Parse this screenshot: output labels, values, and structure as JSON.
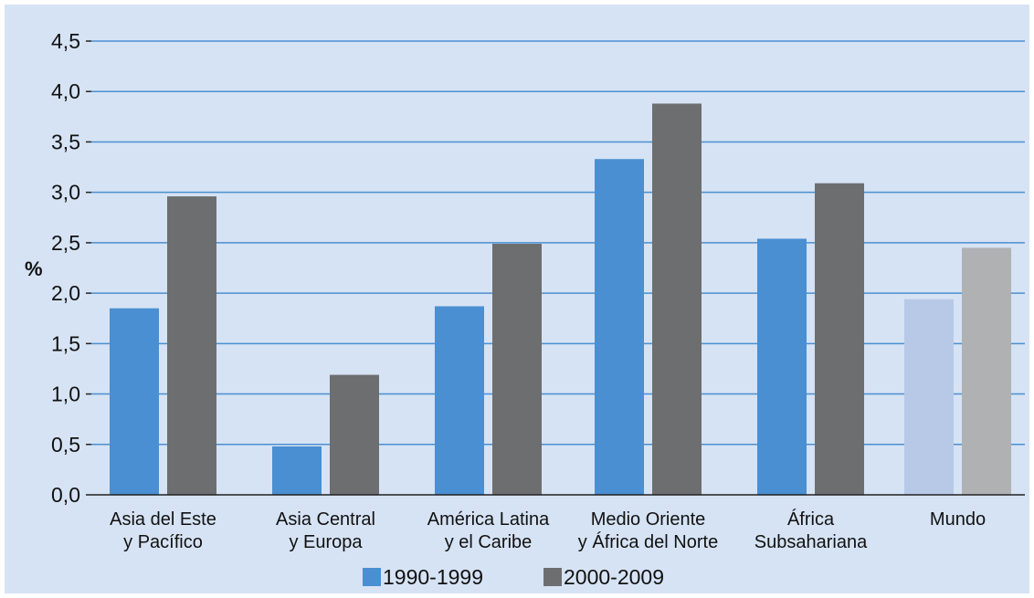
{
  "chart_data": {
    "type": "bar",
    "ylabel": "%",
    "xlabel": "",
    "ylim": [
      0,
      4.5
    ],
    "yticks": [
      "0,0",
      "0,5",
      "1,0",
      "1,5",
      "2,0",
      "2,5",
      "3,0",
      "3,5",
      "4,0",
      "4,5"
    ],
    "categories": [
      [
        "Asia del Este",
        "y Pacífico"
      ],
      [
        "Asia Central",
        "y Europa"
      ],
      [
        "América Latina",
        "y el Caribe"
      ],
      [
        "Medio Oriente",
        "y África del Norte"
      ],
      [
        "África",
        "Subsahariana"
      ],
      [
        "Mundo"
      ]
    ],
    "series": [
      {
        "name": "1990-1999",
        "values": [
          1.85,
          0.48,
          1.87,
          3.33,
          2.54,
          1.94
        ]
      },
      {
        "name": "2000-2009",
        "values": [
          2.96,
          1.19,
          2.49,
          3.88,
          3.09,
          2.45
        ]
      }
    ],
    "colors": {
      "series": [
        "#4a8fd1",
        "#6d6e70"
      ],
      "highlight": [
        "#b7c9e7",
        "#b0b1b3"
      ],
      "background": "#d6e3f4",
      "grid": "#4a8fd1"
    },
    "highlight_category_index": 5,
    "grid": true,
    "legend_position": "bottom"
  }
}
